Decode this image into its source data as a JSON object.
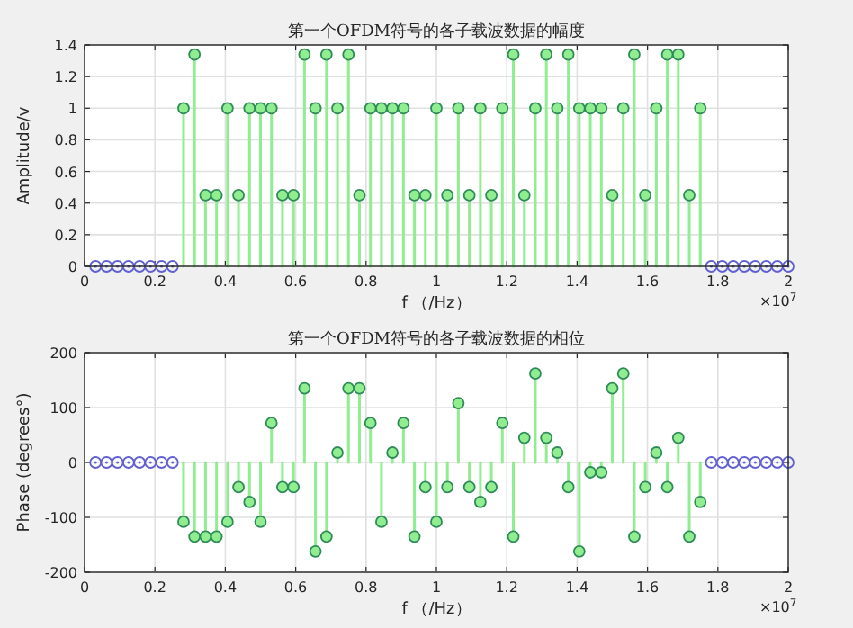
{
  "chart_data": [
    {
      "type": "lollipop",
      "title": "第一个OFDM符号的各子载波数据的幅度",
      "xlabel": "f （/Hz）",
      "ylabel": "Amplitude/v",
      "annotations": [
        "×10$^{7}$"
      ],
      "xlim": [
        0,
        2
      ],
      "xticks": [
        0,
        0.2,
        0.4,
        0.6,
        0.8,
        1,
        1.2,
        1.4,
        1.6,
        1.8,
        2
      ],
      "ylim": [
        0,
        1.4
      ],
      "yticks": [
        0,
        0.2,
        0.4,
        0.6,
        0.8,
        1,
        1.2,
        1.4
      ],
      "grid": true,
      "marker": "circle",
      "series": [
        {
          "color": "#6060d0",
          "x": [
            0.03125,
            0.0625,
            0.09375,
            0.125,
            0.15625,
            0.1875,
            0.21875,
            0.25,
            1.78125,
            1.8125,
            1.84375,
            1.875,
            1.90625,
            1.9375,
            1.96875,
            2
          ],
          "values": [
            0,
            0,
            0,
            0,
            0,
            0,
            0,
            0,
            0,
            0,
            0,
            0,
            0,
            0,
            0,
            0
          ]
        },
        {
          "color": "#90ee90",
          "x": [
            0.28125,
            0.3125,
            0.34375,
            0.375,
            0.40625,
            0.4375,
            0.46875,
            0.5,
            0.53125,
            0.5625,
            0.59375,
            0.625,
            0.65625,
            0.6875,
            0.71875,
            0.75,
            0.78125,
            0.8125,
            0.84375,
            0.875,
            0.90625,
            0.9375,
            0.96875,
            1,
            1.03125,
            1.0625,
            1.09375,
            1.125,
            1.15625,
            1.1875,
            1.21875,
            1.25,
            1.28125,
            1.3125,
            1.34375,
            1.375,
            1.40625,
            1.4375,
            1.46875,
            1.5,
            1.53125,
            1.5625,
            1.59375,
            1.625,
            1.65625,
            1.6875,
            1.71875,
            1.75
          ],
          "values": [
            1,
            1.34,
            0.45,
            0.45,
            1,
            0.45,
            1,
            1,
            1,
            0.45,
            0.45,
            1.34,
            1,
            1.34,
            1,
            1.34,
            0.45,
            1,
            1,
            1,
            1,
            0.45,
            0.45,
            1,
            0.45,
            1,
            0.45,
            1,
            0.45,
            1,
            1.34,
            0.45,
            1,
            1.34,
            1,
            1.34,
            1,
            1,
            1,
            0.45,
            1,
            1.34,
            0.45,
            1,
            1.34,
            1.34,
            0.45,
            1
          ]
        }
      ]
    },
    {
      "type": "lollipop",
      "title": "第一个OFDM符号的各子载波数据的相位",
      "xlabel": "f （/Hz）",
      "ylabel": "Phase (degrees°)",
      "annotations": [
        "×10$^{7}$"
      ],
      "xlim": [
        0,
        2
      ],
      "xticks": [
        0,
        0.2,
        0.4,
        0.6,
        0.8,
        1,
        1.2,
        1.4,
        1.6,
        1.8,
        2
      ],
      "ylim": [
        -200,
        200
      ],
      "yticks": [
        -200,
        -100,
        0,
        100,
        200
      ],
      "grid": true,
      "marker": "circle",
      "series": [
        {
          "color": "#6060d0",
          "x": [
            0.03125,
            0.0625,
            0.09375,
            0.125,
            0.15625,
            0.1875,
            0.21875,
            0.25,
            1.78125,
            1.8125,
            1.84375,
            1.875,
            1.90625,
            1.9375,
            1.96875,
            2
          ],
          "values": [
            0,
            0,
            0,
            0,
            0,
            0,
            0,
            0,
            0,
            0,
            0,
            0,
            0,
            0,
            0,
            0
          ]
        },
        {
          "color": "#90ee90",
          "x": [
            0.28125,
            0.3125,
            0.34375,
            0.375,
            0.40625,
            0.4375,
            0.46875,
            0.5,
            0.53125,
            0.5625,
            0.59375,
            0.625,
            0.65625,
            0.6875,
            0.71875,
            0.75,
            0.78125,
            0.8125,
            0.84375,
            0.875,
            0.90625,
            0.9375,
            0.96875,
            1,
            1.03125,
            1.0625,
            1.09375,
            1.125,
            1.15625,
            1.1875,
            1.21875,
            1.25,
            1.28125,
            1.3125,
            1.34375,
            1.375,
            1.40625,
            1.4375,
            1.46875,
            1.5,
            1.53125,
            1.5625,
            1.59375,
            1.625,
            1.65625,
            1.6875,
            1.71875,
            1.75
          ],
          "values": [
            -108,
            -135,
            -135,
            -135,
            -108,
            -45,
            -72,
            -108,
            72,
            -45,
            -45,
            135,
            -162,
            -135,
            18,
            135,
            135,
            72,
            -108,
            18,
            72,
            -135,
            -45,
            -108,
            -45,
            108,
            -45,
            -72,
            -45,
            72,
            -135,
            45,
            162,
            45,
            18,
            -45,
            -162,
            -18,
            -18,
            135,
            162,
            -135,
            -45,
            18,
            -45,
            45,
            -135,
            -72
          ]
        }
      ]
    }
  ]
}
